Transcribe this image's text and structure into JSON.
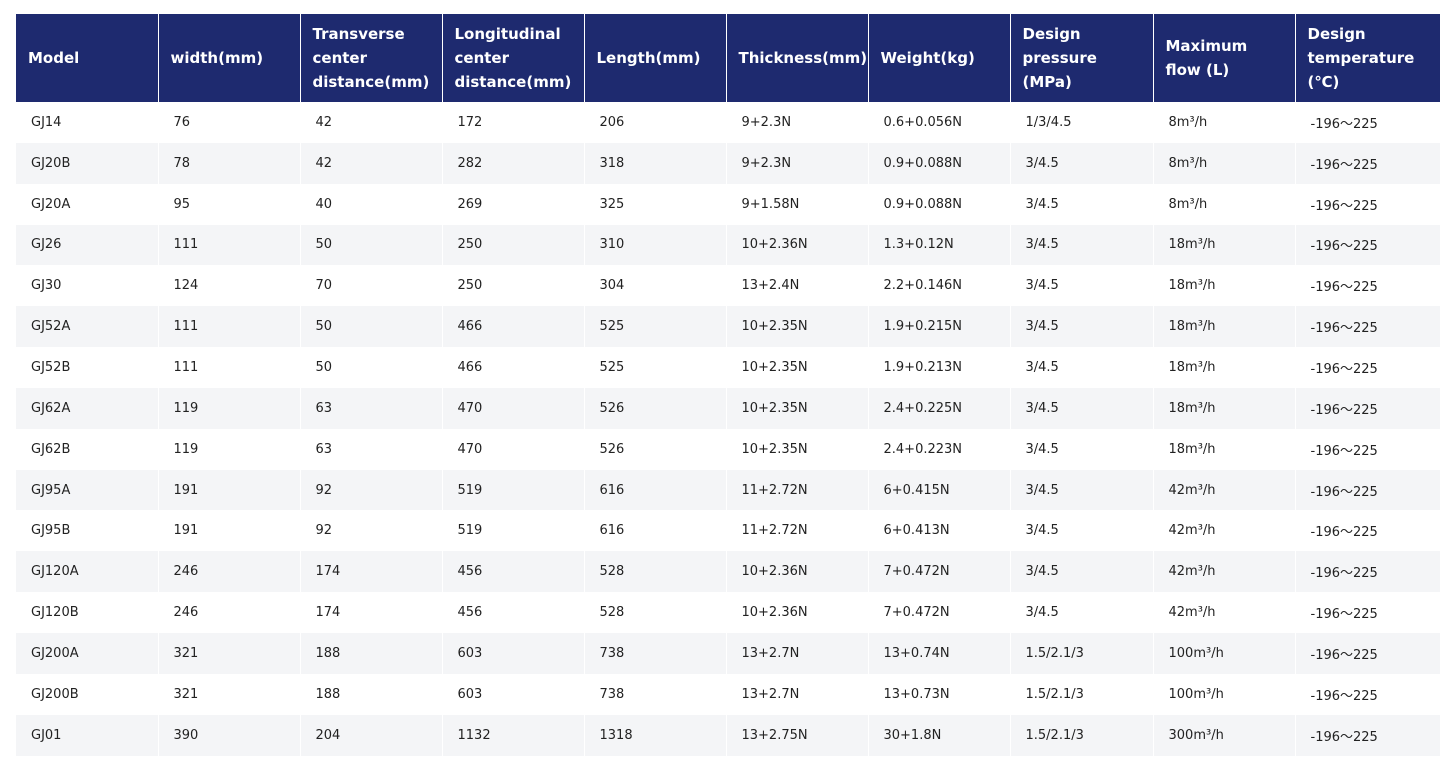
{
  "table": {
    "headers": [
      "Model",
      "width(mm)",
      "Transverse center distance(mm)",
      "Longitudinal center distance(mm)",
      "Length(mm)",
      "Thickness(mm)",
      "Weight(kg)",
      "Design pressure (MPa)",
      "Maximum flow (L)",
      "Design temperature (℃)"
    ],
    "rows": [
      [
        "GJ14",
        "76",
        "42",
        "172",
        "206",
        "9+2.3N",
        "0.6+0.056N",
        "1/3/4.5",
        "8m³/h",
        "-196～225"
      ],
      [
        "GJ20B",
        "78",
        "42",
        "282",
        "318",
        "9+2.3N",
        "0.9+0.088N",
        "3/4.5",
        "8m³/h",
        "-196～225"
      ],
      [
        "GJ20A",
        "95",
        "40",
        "269",
        "325",
        "9+1.58N",
        "0.9+0.088N",
        "3/4.5",
        "8m³/h",
        "-196～225"
      ],
      [
        "GJ26",
        "111",
        "50",
        "250",
        "310",
        "10+2.36N",
        "1.3+0.12N",
        "3/4.5",
        "18m³/h",
        "-196～225"
      ],
      [
        "GJ30",
        "124",
        "70",
        "250",
        "304",
        "13+2.4N",
        "2.2+0.146N",
        "3/4.5",
        "18m³/h",
        "-196～225"
      ],
      [
        "GJ52A",
        "111",
        "50",
        "466",
        "525",
        "10+2.35N",
        "1.9+0.215N",
        "3/4.5",
        "18m³/h",
        "-196～225"
      ],
      [
        "GJ52B",
        "111",
        "50",
        "466",
        "525",
        "10+2.35N",
        "1.9+0.213N",
        "3/4.5",
        "18m³/h",
        "-196～225"
      ],
      [
        "GJ62A",
        "119",
        "63",
        "470",
        "526",
        "10+2.35N",
        "2.4+0.225N",
        "3/4.5",
        "18m³/h",
        "-196～225"
      ],
      [
        "GJ62B",
        "119",
        "63",
        "470",
        "526",
        "10+2.35N",
        "2.4+0.223N",
        "3/4.5",
        "18m³/h",
        "-196～225"
      ],
      [
        "GJ95A",
        "191",
        "92",
        "519",
        "616",
        "11+2.72N",
        "6+0.415N",
        "3/4.5",
        "42m³/h",
        "-196～225"
      ],
      [
        "GJ95B",
        "191",
        "92",
        "519",
        "616",
        "11+2.72N",
        "6+0.413N",
        "3/4.5",
        "42m³/h",
        "-196～225"
      ],
      [
        "GJ120A",
        "246",
        "174",
        "456",
        "528",
        "10+2.36N",
        "7+0.472N",
        "3/4.5",
        "42m³/h",
        "-196～225"
      ],
      [
        "GJ120B",
        "246",
        "174",
        "456",
        "528",
        "10+2.36N",
        "7+0.472N",
        "3/4.5",
        "42m³/h",
        "-196～225"
      ],
      [
        "GJ200A",
        "321",
        "188",
        "603",
        "738",
        "13+2.7N",
        "13+0.74N",
        "1.5/2.1/3",
        "100m³/h",
        "-196～225"
      ],
      [
        "GJ200B",
        "321",
        "188",
        "603",
        "738",
        "13+2.7N",
        "13+0.73N",
        "1.5/2.1/3",
        "100m³/h",
        "-196～225"
      ],
      [
        "GJ01",
        "390",
        "204",
        "1132",
        "1318",
        "13+2.75N",
        "30+1.8N",
        "1.5/2.1/3",
        "300m³/h",
        "-196～225"
      ]
    ]
  },
  "colors": {
    "header_bg": "#1e2a6f",
    "header_text": "#ffffff",
    "row_alt_bg": "#f4f5f7",
    "body_text": "#222222"
  }
}
